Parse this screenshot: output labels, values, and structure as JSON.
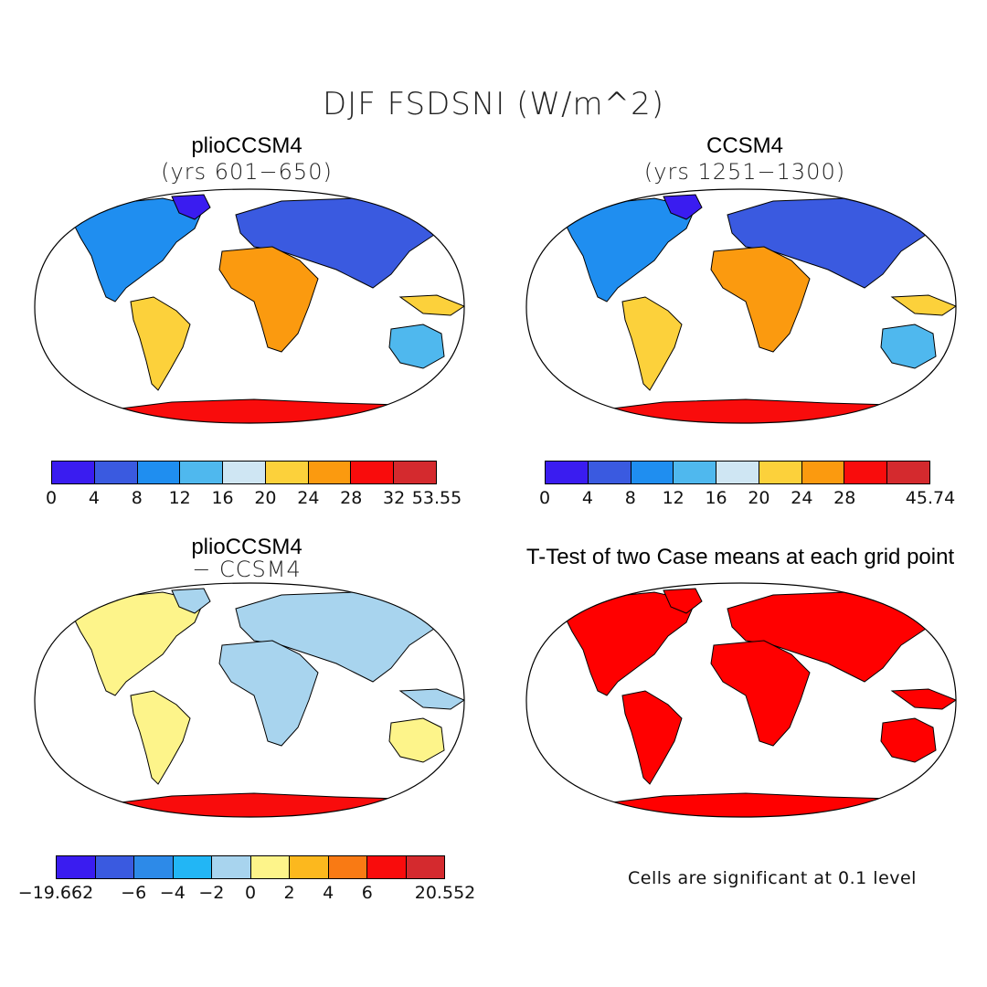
{
  "figure": {
    "title": "DJF FSDSNI (W/m^2)"
  },
  "panels": {
    "pliocene": {
      "title": "plioCCSM4",
      "subtitle": "(yrs 601−650)",
      "colorbar": {
        "colors": [
          "#3a1cf0",
          "#3a5ae0",
          "#1f8ef0",
          "#4fb8ee",
          "#cfe6f3",
          "#fcd13b",
          "#fb9a0f",
          "#f90c0c",
          "#d42a2e"
        ],
        "ticks": [
          "0",
          "4",
          "8",
          "12",
          "16",
          "20",
          "24",
          "28",
          "32",
          "53.55"
        ]
      }
    },
    "control": {
      "title": "CCSM4",
      "subtitle": "(yrs 1251−1300)",
      "colorbar": {
        "colors": [
          "#3a1cf0",
          "#3a5ae0",
          "#1f8ef0",
          "#4fb8ee",
          "#cfe6f3",
          "#fcd13b",
          "#fb9a0f",
          "#f90c0c",
          "#d42a2e"
        ],
        "ticks": [
          "0",
          "4",
          "8",
          "12",
          "16",
          "20",
          "24",
          "28",
          "",
          "45.74"
        ]
      }
    },
    "difference": {
      "title": "plioCCSM4",
      "subtitle": "− CCSM4",
      "colorbar": {
        "colors": [
          "#3a1cf0",
          "#3a5ae0",
          "#2d8ae8",
          "#22b6f5",
          "#a8d4ee",
          "#fdf48a",
          "#fcb81e",
          "#f97a14",
          "#f90c0c",
          "#d42a2e"
        ],
        "ticks": [
          "−19.662",
          "",
          "−6",
          "−4",
          "−2",
          "0",
          "2",
          "4",
          "6",
          "",
          "20.552"
        ]
      }
    },
    "ttest": {
      "title": "T-Test of two Case means at each grid point",
      "note": "Cells are significant at 0.1 level"
    }
  },
  "colors": {
    "significant": "#ff0000"
  }
}
